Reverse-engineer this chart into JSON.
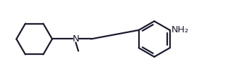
{
  "background_color": "#ffffff",
  "line_color": "#1a1a2e",
  "line_width": 1.6,
  "text_color": "#1a1a2e",
  "font_size": 9.5,
  "figsize": [
    3.26,
    1.11
  ],
  "dpi": 100,
  "xlim": [
    0.0,
    10.5
  ],
  "ylim": [
    0.3,
    3.2
  ]
}
